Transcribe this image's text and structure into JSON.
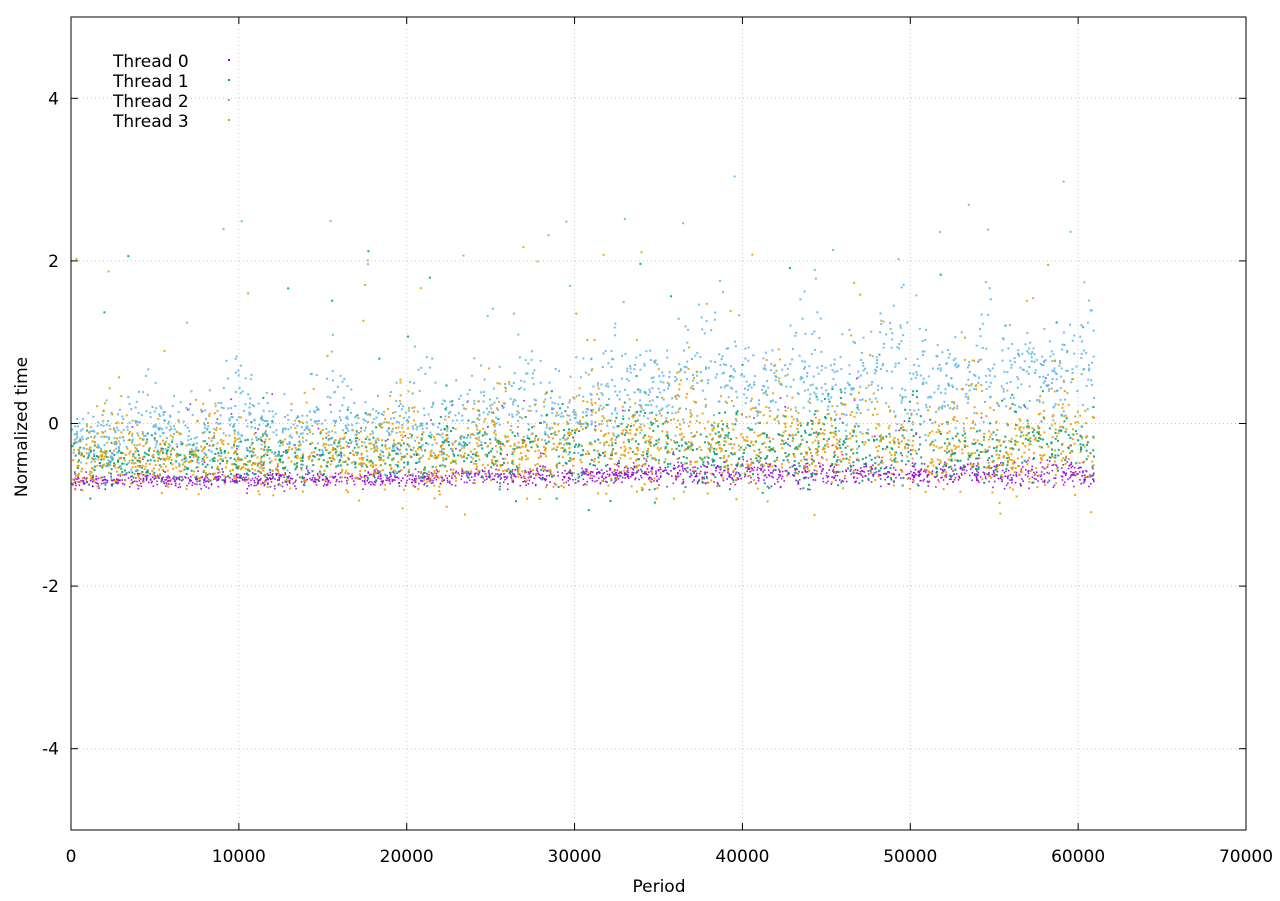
{
  "chart_data": {
    "type": "scatter",
    "title": "",
    "xlabel": "Period",
    "ylabel": "Normalized time",
    "xlim": [
      0,
      70000
    ],
    "ylim": [
      -5,
      5
    ],
    "xticks": [
      0,
      10000,
      20000,
      30000,
      40000,
      50000,
      60000,
      70000
    ],
    "yticks": [
      -4,
      -2,
      0,
      2,
      4
    ],
    "xtick_labels": [
      "0",
      "10000",
      "20000",
      "30000",
      "40000",
      "50000",
      "60000",
      "70000"
    ],
    "ytick_labels": [
      "-4",
      "-2",
      "0",
      "2",
      "4"
    ],
    "grid": true,
    "legend_position": "top-left",
    "x_extent": [
      0,
      60900
    ],
    "series": [
      {
        "name": "Thread 0",
        "color": "#9400d3",
        "approx_trend": {
          "x": [
            0,
            10000,
            20000,
            30000,
            40000,
            50000,
            60900
          ],
          "median": [
            -0.7,
            -0.68,
            -0.66,
            -0.62,
            -0.6,
            -0.62,
            -0.6
          ],
          "spread": [
            0.08,
            0.08,
            0.08,
            0.1,
            0.12,
            0.12,
            0.12
          ]
        }
      },
      {
        "name": "Thread 1",
        "color": "#009e73",
        "approx_trend": {
          "x": [
            0,
            10000,
            20000,
            30000,
            40000,
            50000,
            60900
          ],
          "median": [
            -0.45,
            -0.45,
            -0.4,
            -0.3,
            -0.35,
            -0.35,
            -0.3
          ],
          "spread": [
            0.25,
            0.25,
            0.3,
            0.4,
            0.35,
            0.35,
            0.35
          ]
        }
      },
      {
        "name": "Thread 2",
        "color": "#56b4e9",
        "approx_trend": {
          "x": [
            0,
            10000,
            20000,
            30000,
            40000,
            50000,
            60900
          ],
          "median": [
            -0.2,
            -0.05,
            -0.1,
            0.3,
            0.5,
            0.5,
            0.6
          ],
          "spread": [
            0.35,
            0.4,
            0.45,
            0.5,
            0.5,
            0.55,
            0.45
          ]
        }
      },
      {
        "name": "Thread 3",
        "color": "#e69f00",
        "approx_trend": {
          "x": [
            0,
            10000,
            20000,
            30000,
            40000,
            50000,
            60900
          ],
          "median": [
            -0.45,
            -0.45,
            -0.4,
            -0.3,
            -0.3,
            -0.3,
            -0.25
          ],
          "spread": [
            0.3,
            0.35,
            0.4,
            0.45,
            0.5,
            0.5,
            0.5
          ]
        }
      }
    ]
  }
}
